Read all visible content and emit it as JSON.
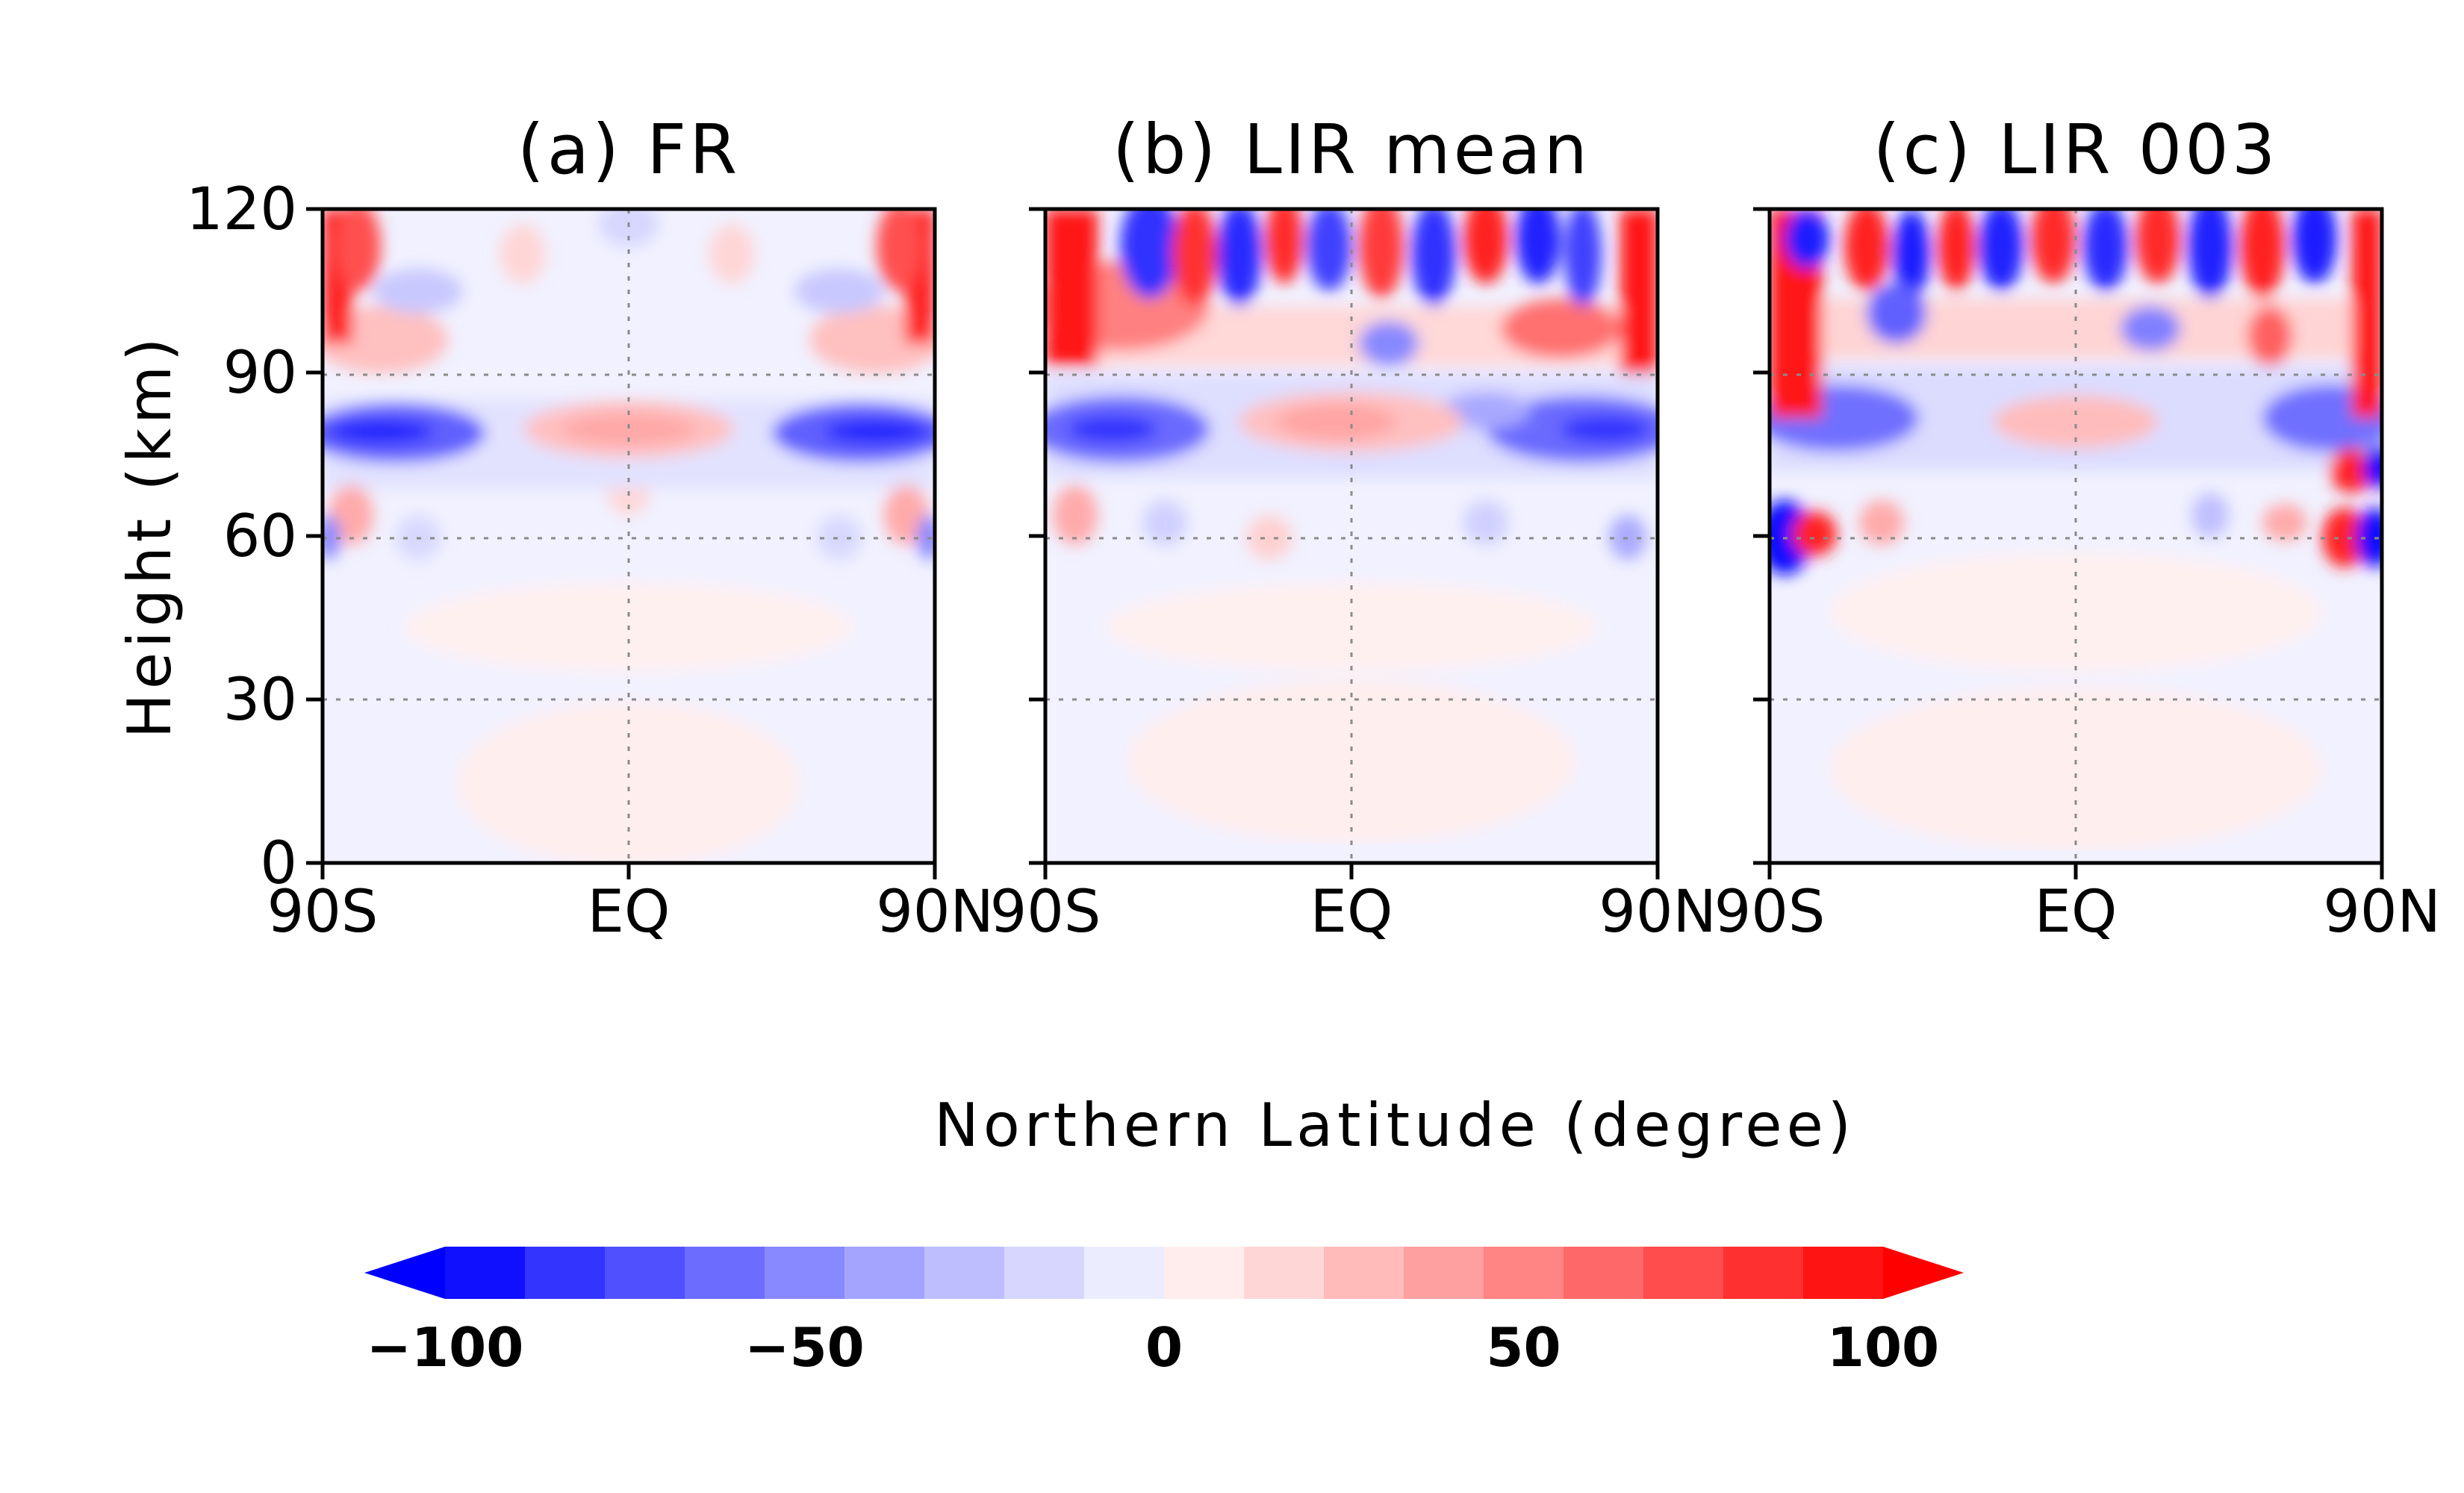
{
  "chart_data": {
    "type": "heatmap",
    "panels": [
      {
        "id": "a",
        "title": "(a) FR"
      },
      {
        "id": "b",
        "title": "(b) LIR mean"
      },
      {
        "id": "c",
        "title": "(c) LIR 003"
      }
    ],
    "xlabel": "Northern Latitude (degree)",
    "ylabel": "Height (km)",
    "x_ticks": [
      "90S",
      "EQ",
      "90N"
    ],
    "x_range": [
      -90,
      90
    ],
    "y_ticks": [
      "0",
      "30",
      "60",
      "90",
      "120"
    ],
    "y_range": [
      0,
      120
    ],
    "grid": "dotted lines at EQ and at 30, 60, 90 km",
    "colorbar": {
      "labels": [
        "−100",
        "−50",
        "0",
        "50",
        "100"
      ],
      "range": [
        -100,
        100
      ],
      "step": 10,
      "extend": "both",
      "colors": [
        "#1010ff",
        "#3434ff",
        "#5050ff",
        "#6c6cff",
        "#8888ff",
        "#a4a4ff",
        "#bebeff",
        "#d6d6ff",
        "#ececff",
        "#ffeded",
        "#ffd6d6",
        "#ffbaba",
        "#ffa0a0",
        "#ff8484",
        "#ff6868",
        "#ff4c4c",
        "#ff3030",
        "#ff1414"
      ],
      "under_color": "#0000ff",
      "over_color": "#ff0000"
    }
  }
}
